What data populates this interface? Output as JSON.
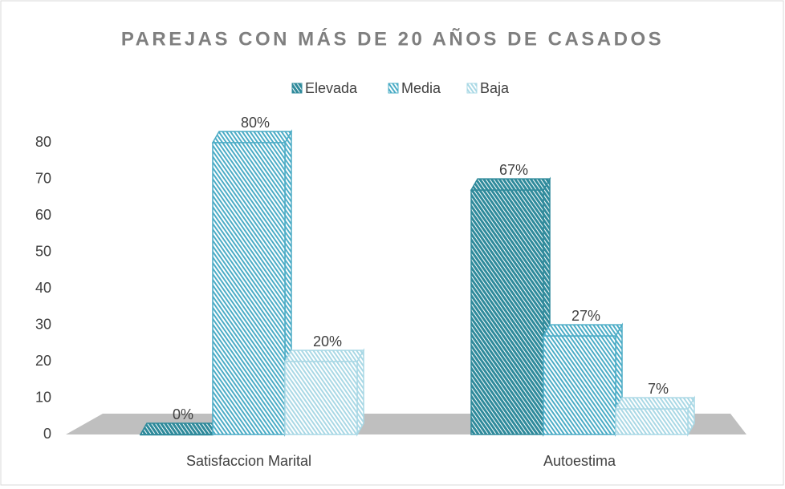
{
  "chart_data": {
    "type": "bar3d",
    "title": "PAREJAS CON MÁS DE 20 AÑOS DE CASADOS",
    "categories": [
      "Satisfaccion Marital",
      "Autoestima"
    ],
    "series": [
      {
        "name": "Elevada",
        "color": "#2f8a9b",
        "values": [
          0,
          67
        ],
        "value_labels": [
          "0%",
          "67%"
        ]
      },
      {
        "name": "Media",
        "color": "#4bacc6",
        "values": [
          80,
          27
        ],
        "value_labels": [
          "80%",
          "27%"
        ]
      },
      {
        "name": "Baja",
        "color": "#a9d8e5",
        "values": [
          20,
          7
        ],
        "value_labels": [
          "20%",
          "7%"
        ]
      }
    ],
    "ylim": [
      0,
      80
    ],
    "yticks": [
      0,
      10,
      20,
      30,
      40,
      50,
      60,
      70,
      80
    ],
    "legend": "top"
  }
}
